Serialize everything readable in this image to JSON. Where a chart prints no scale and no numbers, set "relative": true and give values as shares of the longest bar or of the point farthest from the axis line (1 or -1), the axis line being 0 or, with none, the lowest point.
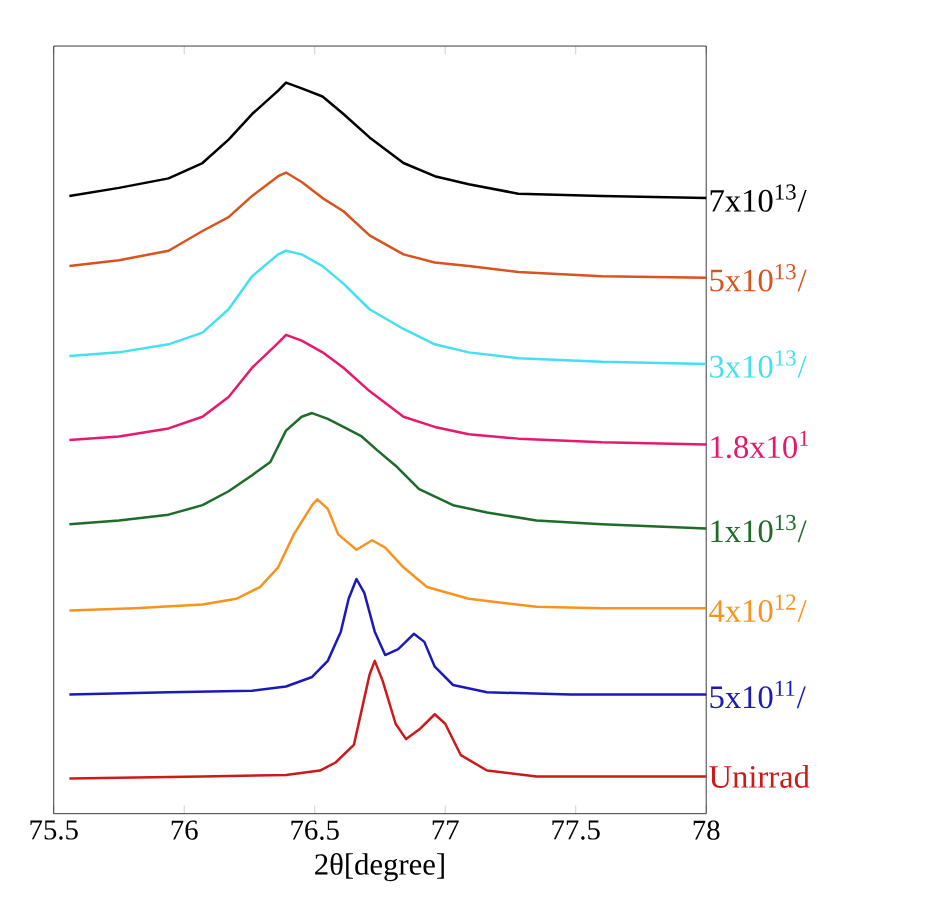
{
  "chart_data": {
    "type": "line",
    "relative": true,
    "xlabel": "2θ[degree]",
    "xlim": [
      75.5,
      78
    ],
    "xticks": [
      75.5,
      76,
      76.5,
      77,
      77.5,
      78
    ],
    "series": [
      {
        "name": "7x10$^{13}$/",
        "color": "#000000",
        "x": [
          75.56,
          75.75,
          75.94,
          76.07,
          76.17,
          76.26,
          76.36,
          76.39,
          76.45,
          76.53,
          76.61,
          76.71,
          76.84,
          76.96,
          77.09,
          77.28,
          77.6,
          78.0
        ],
        "values": [
          0.845,
          0.856,
          0.869,
          0.89,
          0.922,
          0.957,
          0.989,
          1.0,
          0.992,
          0.981,
          0.957,
          0.925,
          0.89,
          0.872,
          0.861,
          0.848,
          0.845,
          0.842
        ]
      },
      {
        "name": "5x10$^{13}$/",
        "color": "#d9531e",
        "x": [
          75.56,
          75.75,
          75.94,
          76.07,
          76.17,
          76.26,
          76.36,
          76.39,
          76.45,
          76.53,
          76.61,
          76.71,
          76.84,
          76.96,
          77.09,
          77.28,
          77.6,
          78.0
        ],
        "values": [
          0.749,
          0.757,
          0.77,
          0.797,
          0.816,
          0.845,
          0.872,
          0.877,
          0.864,
          0.842,
          0.824,
          0.791,
          0.765,
          0.754,
          0.749,
          0.741,
          0.735,
          0.733
        ]
      },
      {
        "name": "3x10$^{13}$/",
        "color": "#44e0f0",
        "x": [
          75.56,
          75.75,
          75.94,
          76.07,
          76.17,
          76.26,
          76.36,
          76.39,
          76.45,
          76.53,
          76.61,
          76.71,
          76.84,
          76.96,
          77.09,
          77.28,
          77.6,
          78.0
        ],
        "values": [
          0.626,
          0.631,
          0.642,
          0.658,
          0.69,
          0.735,
          0.765,
          0.77,
          0.765,
          0.749,
          0.725,
          0.69,
          0.663,
          0.642,
          0.631,
          0.623,
          0.618,
          0.615
        ]
      },
      {
        "name": "1.8x10$^{1}$",
        "color": "#e8186d",
        "x": [
          75.56,
          75.75,
          75.94,
          76.07,
          76.17,
          76.26,
          76.36,
          76.39,
          76.45,
          76.53,
          76.61,
          76.71,
          76.84,
          76.96,
          77.09,
          77.28,
          77.6,
          78.0
        ],
        "values": [
          0.511,
          0.516,
          0.527,
          0.543,
          0.57,
          0.61,
          0.644,
          0.655,
          0.647,
          0.631,
          0.61,
          0.578,
          0.543,
          0.529,
          0.519,
          0.513,
          0.508,
          0.505
        ]
      },
      {
        "name": "1x10$^{13}$/",
        "color": "#1e6b2a",
        "x": [
          75.56,
          75.75,
          75.94,
          76.07,
          76.17,
          76.26,
          76.33,
          76.39,
          76.45,
          76.49,
          76.55,
          76.61,
          76.68,
          76.74,
          76.81,
          76.9,
          77.03,
          77.16,
          77.35,
          77.6,
          78.0
        ],
        "values": [
          0.396,
          0.401,
          0.409,
          0.422,
          0.441,
          0.463,
          0.481,
          0.524,
          0.543,
          0.548,
          0.54,
          0.529,
          0.516,
          0.497,
          0.476,
          0.444,
          0.422,
          0.412,
          0.401,
          0.396,
          0.39
        ]
      },
      {
        "name": "4x10$^{12}$/",
        "color": "#f7931e",
        "x": [
          75.56,
          75.81,
          76.07,
          76.2,
          76.29,
          76.36,
          76.42,
          76.49,
          76.51,
          76.55,
          76.59,
          76.66,
          76.72,
          76.77,
          76.84,
          76.93,
          77.09,
          77.35,
          77.6,
          78.0
        ],
        "values": [
          0.278,
          0.281,
          0.286,
          0.294,
          0.31,
          0.337,
          0.382,
          0.422,
          0.43,
          0.417,
          0.382,
          0.361,
          0.374,
          0.364,
          0.337,
          0.31,
          0.294,
          0.283,
          0.281,
          0.281
        ]
      },
      {
        "name": "5x10$^{11}$/",
        "color": "#1a1ab8",
        "x": [
          75.56,
          75.94,
          76.26,
          76.39,
          76.49,
          76.55,
          76.6,
          76.63,
          76.66,
          76.69,
          76.73,
          76.77,
          76.82,
          76.88,
          76.92,
          76.96,
          77.03,
          77.16,
          77.48,
          78.0
        ],
        "values": [
          0.163,
          0.166,
          0.168,
          0.174,
          0.187,
          0.209,
          0.249,
          0.294,
          0.321,
          0.302,
          0.249,
          0.217,
          0.225,
          0.246,
          0.235,
          0.201,
          0.176,
          0.166,
          0.163,
          0.163
        ]
      },
      {
        "name": "Unirrad",
        "color": "#cc1a1a",
        "x": [
          75.56,
          76.07,
          76.39,
          76.52,
          76.58,
          76.65,
          76.68,
          76.71,
          76.73,
          76.76,
          76.81,
          76.85,
          76.9,
          76.96,
          77.0,
          77.06,
          77.16,
          77.35,
          78.0
        ],
        "values": [
          0.048,
          0.051,
          0.053,
          0.059,
          0.07,
          0.094,
          0.142,
          0.19,
          0.209,
          0.182,
          0.123,
          0.102,
          0.115,
          0.136,
          0.123,
          0.08,
          0.059,
          0.051,
          0.051
        ]
      }
    ]
  }
}
